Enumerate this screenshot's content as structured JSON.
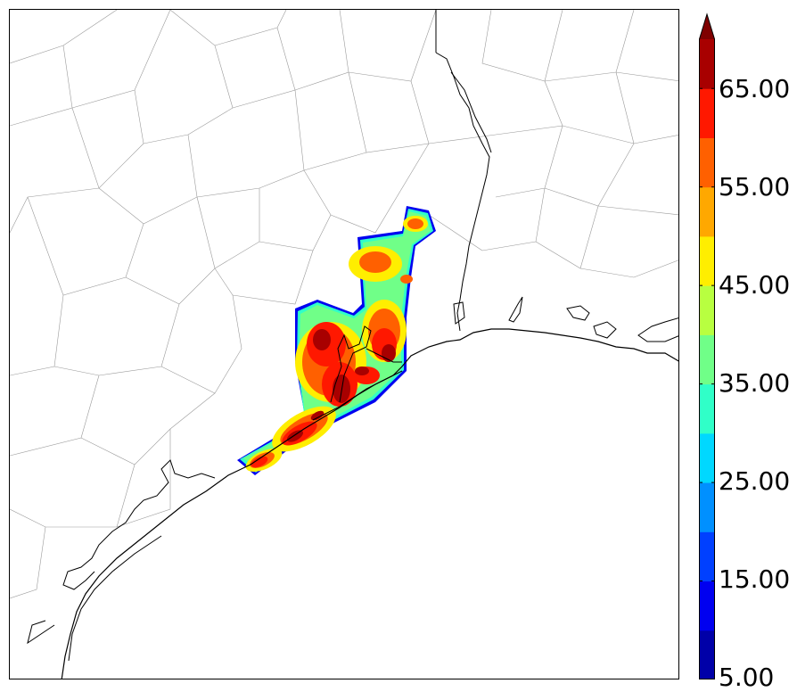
{
  "colorbar": {
    "min_label": "5.00",
    "tick_labels": [
      "15.00",
      "25.00",
      "35.00",
      "45.00",
      "55.00",
      "65.00"
    ],
    "levels": [
      5,
      10,
      15,
      20,
      25,
      30,
      35,
      40,
      45,
      50,
      55,
      60,
      65,
      70
    ],
    "colors": [
      "#0000a8",
      "#0000f0",
      "#0040ff",
      "#0090ff",
      "#00d8ff",
      "#30ffc8",
      "#70ff88",
      "#b8ff40",
      "#ffee00",
      "#ffa800",
      "#ff6000",
      "#ff1800",
      "#a80000"
    ],
    "extend_color": "#7f0000",
    "extend": "max"
  },
  "map": {
    "coastline_color": "#000000",
    "county_line_color": "#9a9a9a"
  }
}
